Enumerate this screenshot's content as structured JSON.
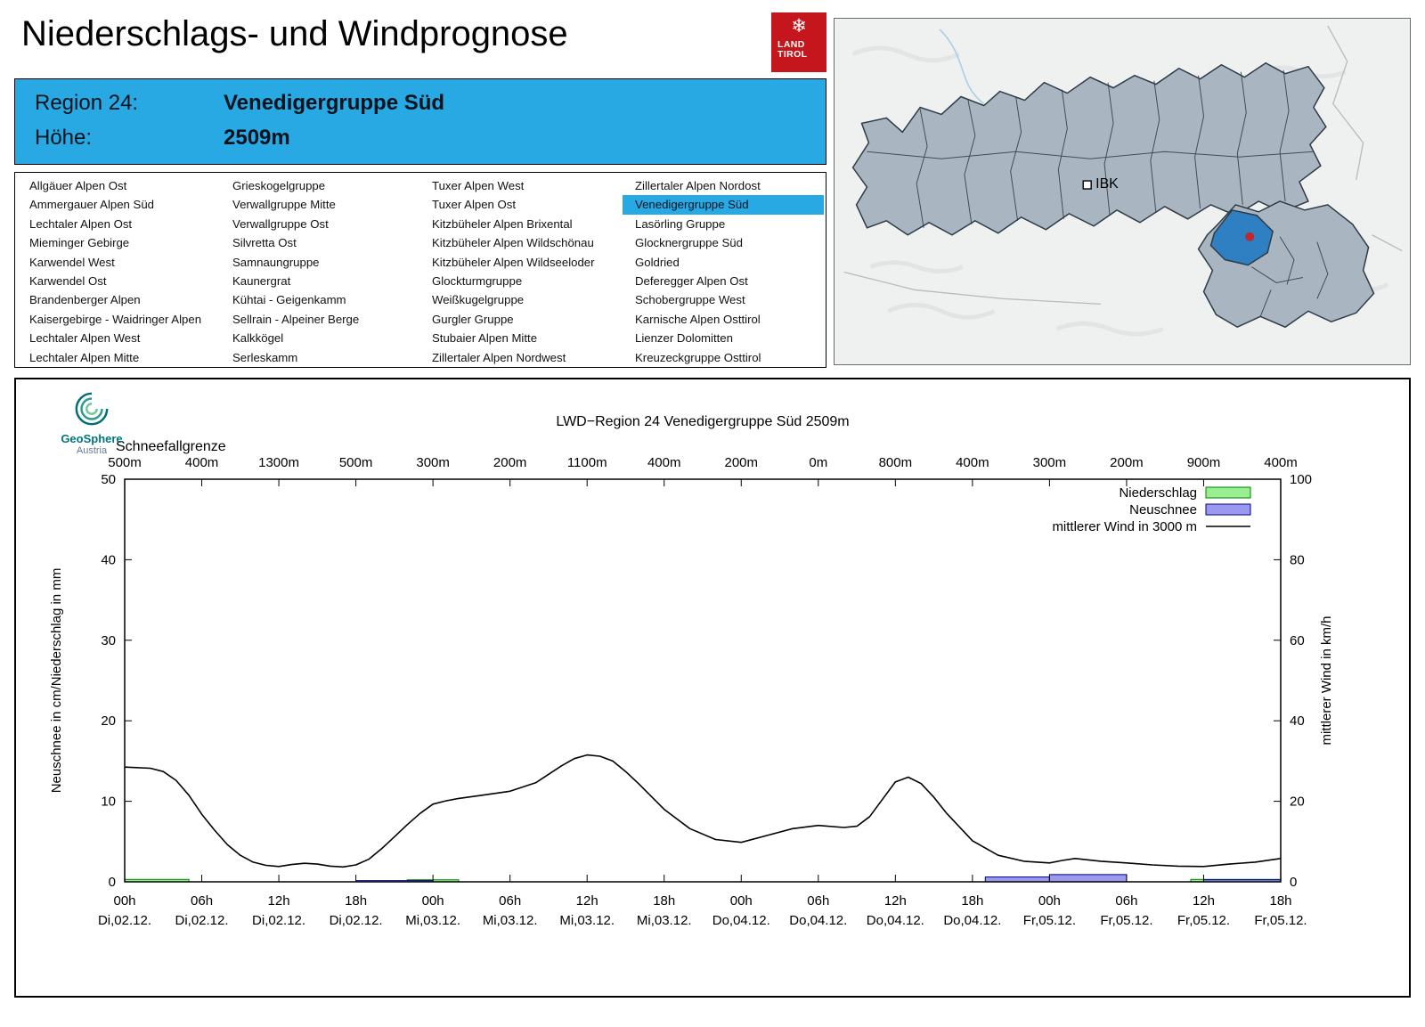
{
  "header": {
    "title": "Niederschlags- und Windprognose",
    "logo": {
      "line1": "LAND",
      "line2": "TIROL"
    }
  },
  "region_box": {
    "region_label": "Region 24:",
    "region_value": "Venedigergruppe Süd",
    "elevation_label": "Höhe:",
    "elevation_value": "2509m",
    "accent_color": "#29A9E3"
  },
  "region_list": {
    "selected": "Venedigergruppe Süd",
    "columns": [
      [
        "Allgäuer Alpen Ost",
        "Ammergauer Alpen Süd",
        "Lechtaler Alpen Ost",
        "Mieminger Gebirge",
        "Karwendel West",
        "Karwendel Ost",
        "Brandenberger Alpen",
        "Kaisergebirge - Waidringer Alpen",
        "Lechtaler Alpen West",
        "Lechtaler Alpen Mitte"
      ],
      [
        "Grieskogelgruppe",
        "Verwallgruppe Mitte",
        "Verwallgruppe Ost",
        "Silvretta Ost",
        "Samnaungruppe",
        "Kaunergrat",
        "Kühtai - Geigenkamm",
        "Sellrain - Alpeiner Berge",
        "Kalkkögel",
        "Serleskamm"
      ],
      [
        "Tuxer Alpen West",
        "Tuxer Alpen Ost",
        "Kitzbüheler Alpen Brixental",
        "Kitzbüheler Alpen Wildschönau",
        "Kitzbüheler Alpen Wildseeloder",
        "Glockturmgruppe",
        "Weißkugelgruppe",
        "Gurgler Gruppe",
        "Stubaier Alpen Mitte",
        "Zillertaler Alpen Nordwest"
      ],
      [
        "Zillertaler Alpen Nordost",
        "Venedigergruppe Süd",
        "Lasörling Gruppe",
        "Glocknergruppe Süd",
        "Goldried",
        "Deferegger Alpen Ost",
        "Schobergruppe West",
        "Karnische Alpen Osttirol",
        "Lienzer Dolomitten",
        "Kreuzeckgruppe Osttirol"
      ]
    ]
  },
  "map": {
    "ibk_label": "IBK",
    "selected_region_color": "#2F80C2",
    "region_fill": "#A9B6C2",
    "marker_color": "#C1272D"
  },
  "geosphere": {
    "name": "GeoSphere",
    "country": "Austria"
  },
  "chart_data": {
    "type": "line",
    "title": "LWD−Region 24 Venedigergruppe Süd 2509m",
    "top_axis": {
      "label": "Schneefallgrenze",
      "values": [
        "500m",
        "400m",
        "1300m",
        "500m",
        "300m",
        "200m",
        "1100m",
        "400m",
        "200m",
        "0m",
        "800m",
        "400m",
        "300m",
        "200m",
        "900m",
        "400m"
      ]
    },
    "ylabel_left": "Neuschnee in cm/Niederschlag in mm",
    "ylabel_right": "mittlerer Wind in km/h",
    "ylim_left": [
      0,
      50
    ],
    "ylim_right": [
      0,
      100
    ],
    "x_range_hours": [
      0,
      90
    ],
    "x_ticks": [
      {
        "hour": "00h",
        "day": "Di,02.12."
      },
      {
        "hour": "06h",
        "day": "Di,02.12."
      },
      {
        "hour": "12h",
        "day": "Di,02.12."
      },
      {
        "hour": "18h",
        "day": "Di,02.12."
      },
      {
        "hour": "00h",
        "day": "Mi,03.12."
      },
      {
        "hour": "06h",
        "day": "Mi,03.12."
      },
      {
        "hour": "12h",
        "day": "Mi,03.12."
      },
      {
        "hour": "18h",
        "day": "Mi,03.12."
      },
      {
        "hour": "00h",
        "day": "Do,04.12."
      },
      {
        "hour": "06h",
        "day": "Do,04.12."
      },
      {
        "hour": "12h",
        "day": "Do,04.12."
      },
      {
        "hour": "18h",
        "day": "Do,04.12."
      },
      {
        "hour": "00h",
        "day": "Fr,05.12."
      },
      {
        "hour": "06h",
        "day": "Fr,05.12."
      },
      {
        "hour": "12h",
        "day": "Fr,05.12."
      },
      {
        "hour": "18h",
        "day": "Fr,05.12."
      }
    ],
    "legend": [
      {
        "label": "Niederschlag",
        "type": "box",
        "fill": "#98EE90",
        "stroke": "#008000"
      },
      {
        "label": "Neuschnee",
        "type": "box",
        "fill": "#9A98EF",
        "stroke": "#00008B"
      },
      {
        "label": "mittlerer Wind in 3000 m",
        "type": "line",
        "stroke": "#000000"
      }
    ],
    "series": [
      {
        "name": "Niederschlag",
        "unit": "mm",
        "axis": "left",
        "type": "bar",
        "fill": "#98EE90",
        "stroke": "#008000",
        "bars": [
          [
            0,
            5,
            0.3
          ],
          [
            22,
            26,
            0.25
          ],
          [
            83,
            90,
            0.3
          ]
        ]
      },
      {
        "name": "Neuschnee",
        "unit": "cm",
        "axis": "left",
        "type": "bar",
        "fill": "#9A98EF",
        "stroke": "#00008B",
        "bars": [
          [
            18,
            24,
            0.15
          ],
          [
            67,
            72,
            0.6
          ],
          [
            72,
            78,
            0.9
          ],
          [
            84,
            90,
            0.25
          ]
        ]
      },
      {
        "name": "mittlerer Wind in 3000 m",
        "unit": "km/h",
        "axis": "right",
        "type": "line",
        "stroke": "#000000",
        "points": [
          [
            0,
            28.5
          ],
          [
            2,
            28.2
          ],
          [
            3,
            27.4
          ],
          [
            4,
            25.2
          ],
          [
            5,
            21.5
          ],
          [
            6,
            16.8
          ],
          [
            7,
            12.8
          ],
          [
            8,
            9.2
          ],
          [
            9,
            6.6
          ],
          [
            10,
            4.9
          ],
          [
            11,
            4.1
          ],
          [
            12,
            3.8
          ],
          [
            13,
            4.3
          ],
          [
            14,
            4.6
          ],
          [
            15,
            4.4
          ],
          [
            16,
            3.9
          ],
          [
            17,
            3.7
          ],
          [
            18,
            4.2
          ],
          [
            19,
            5.6
          ],
          [
            20,
            8.2
          ],
          [
            21,
            11.2
          ],
          [
            22,
            14.2
          ],
          [
            23,
            17.0
          ],
          [
            24,
            19.3
          ],
          [
            25,
            20.1
          ],
          [
            26,
            20.7
          ],
          [
            28,
            21.6
          ],
          [
            30,
            22.5
          ],
          [
            32,
            24.6
          ],
          [
            34,
            28.8
          ],
          [
            35,
            30.6
          ],
          [
            36,
            31.5
          ],
          [
            37,
            31.2
          ],
          [
            38,
            30.0
          ],
          [
            39,
            27.4
          ],
          [
            40,
            24.4
          ],
          [
            42,
            18.0
          ],
          [
            44,
            13.2
          ],
          [
            46,
            10.5
          ],
          [
            48,
            9.8
          ],
          [
            50,
            11.5
          ],
          [
            52,
            13.2
          ],
          [
            54,
            14.0
          ],
          [
            56,
            13.5
          ],
          [
            57,
            13.8
          ],
          [
            58,
            16.2
          ],
          [
            59,
            20.5
          ],
          [
            60,
            24.8
          ],
          [
            61,
            26.0
          ],
          [
            62,
            24.4
          ],
          [
            63,
            21.0
          ],
          [
            64,
            17.0
          ],
          [
            66,
            10.2
          ],
          [
            68,
            6.6
          ],
          [
            70,
            5.1
          ],
          [
            72,
            4.7
          ],
          [
            73,
            5.3
          ],
          [
            74,
            5.8
          ],
          [
            76,
            5.1
          ],
          [
            78,
            4.7
          ],
          [
            80,
            4.2
          ],
          [
            82,
            3.9
          ],
          [
            84,
            3.8
          ],
          [
            86,
            4.4
          ],
          [
            88,
            4.9
          ],
          [
            90,
            5.8
          ]
        ]
      }
    ]
  }
}
